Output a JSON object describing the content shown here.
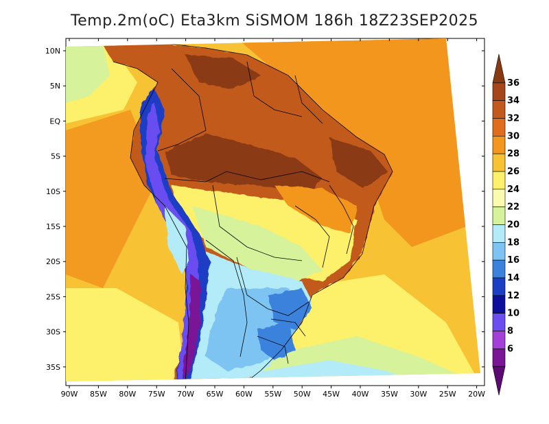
{
  "title": "Temp.2m(oC) Eta3km SiSMOM 186h 18Z23SEP2025",
  "lon_labels": [
    "90W",
    "85W",
    "80W",
    "75W",
    "70W",
    "65W",
    "60W",
    "55W",
    "50W",
    "45W",
    "40W",
    "35W",
    "30W",
    "25W",
    "20W"
  ],
  "lat_labels": [
    "10N",
    "5N",
    "EQ",
    "5S",
    "10S",
    "15S",
    "20S",
    "25S",
    "30S",
    "35S"
  ],
  "colorbar": {
    "labels": [
      "36",
      "34",
      "32",
      "30",
      "28",
      "26",
      "24",
      "22",
      "20",
      "18",
      "16",
      "14",
      "12",
      "10",
      "8",
      "6"
    ],
    "colors": [
      "#8a3a13",
      "#a5471a",
      "#c25a1d",
      "#e06d1e",
      "#f2961e",
      "#f7c234",
      "#fdf06a",
      "#fbfbb0",
      "#d6f29b",
      "#b3ecf8",
      "#7dc4f2",
      "#3a82dc",
      "#1c3ec4",
      "#0e0e9c",
      "#6b4df0",
      "#a240d8",
      "#7a1696",
      "#5c0a74"
    ]
  }
}
